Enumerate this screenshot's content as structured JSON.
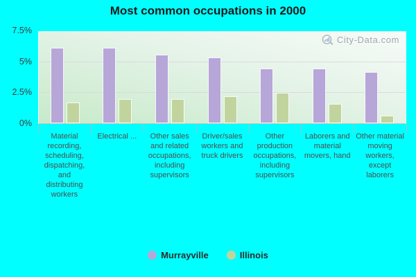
{
  "title": "Most common occupations in 2000",
  "watermark": "City-Data.com",
  "colors": {
    "background": "#00ffff",
    "murrayville_bar": "#b7a6d8",
    "illinois_bar": "#c1d49e",
    "plot_gradient_top": "#f7fbf8",
    "plot_gradient_bottom": "#c7eac9"
  },
  "chart_data": {
    "type": "bar",
    "title": "Most common occupations in 2000",
    "categories": [
      "Material recording, scheduling, dispatching, and distributing workers",
      "Electrical ...",
      "Other sales and related occupations, including supervisors",
      "Driver/sales workers and truck drivers",
      "Other production occupations, including supervisors",
      "Laborers and material movers, hand",
      "Other material moving workers, except laborers"
    ],
    "series": [
      {
        "name": "Murrayville",
        "color": "#b7a6d8",
        "values": [
          6.2,
          6.2,
          5.6,
          5.4,
          4.5,
          4.5,
          4.2
        ]
      },
      {
        "name": "Illinois",
        "color": "#c1d49e",
        "values": [
          1.7,
          2.0,
          2.0,
          2.2,
          2.5,
          1.6,
          0.6
        ]
      }
    ],
    "unit": "%",
    "ylim": [
      0,
      7.5
    ],
    "y_ticks": [
      {
        "label": "0%",
        "value": 0
      },
      {
        "label": "2.5%",
        "value": 2.5
      },
      {
        "label": "5%",
        "value": 5
      },
      {
        "label": "7.5%",
        "value": 7.5
      }
    ],
    "grid": "horizontal",
    "legend_position": "bottom"
  }
}
